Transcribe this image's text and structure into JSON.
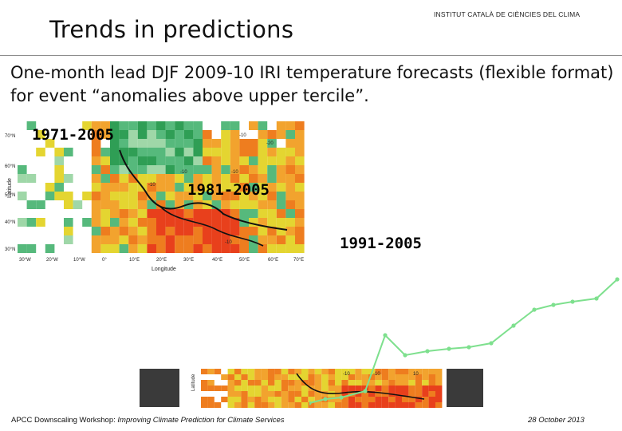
{
  "header": {
    "title": "Trends in predictions",
    "institution": "INSTITUT CATALÀ DE CIÈNCIES DEL CLIMA"
  },
  "subtitle": "One-month lead DJF 2009-10 IRI temperature forecasts (flexible format) for event “anomalies above upper tercile”.",
  "maps": {
    "period_1": "1971-2005",
    "period_2": "1981-2005",
    "period_3": "1991-2005",
    "x_axis_label": "Longitude",
    "y_axis_label": "Latitude",
    "lon_ticks": [
      "30°W",
      "20°W",
      "10°W",
      "0°",
      "10°E",
      "20°E",
      "30°E",
      "40°E",
      "50°E",
      "60°E",
      "70°E"
    ],
    "lat_ticks": [
      "70°N",
      "60°N",
      "50°N",
      "40°N",
      "30°N"
    ],
    "cell_labels": [
      "-20",
      "-10",
      "-10",
      "-10",
      "-10",
      "-10",
      "-10",
      "-10",
      "10"
    ]
  },
  "colors": {
    "green_dark": "#2f9e55",
    "green_mid": "#56b97c",
    "green_light": "#9fd7a8",
    "yellow": "#e4d531",
    "orange": "#f2a32e",
    "orange_dark": "#ee7d1f",
    "red": "#e8401c",
    "trend_line": "#7ee08e"
  },
  "footer": {
    "left_prefix": "APCC Downscaling Workshop: ",
    "left_italic": "Improving Climate Prediction for Climate Services",
    "date": "28 October 2013"
  }
}
